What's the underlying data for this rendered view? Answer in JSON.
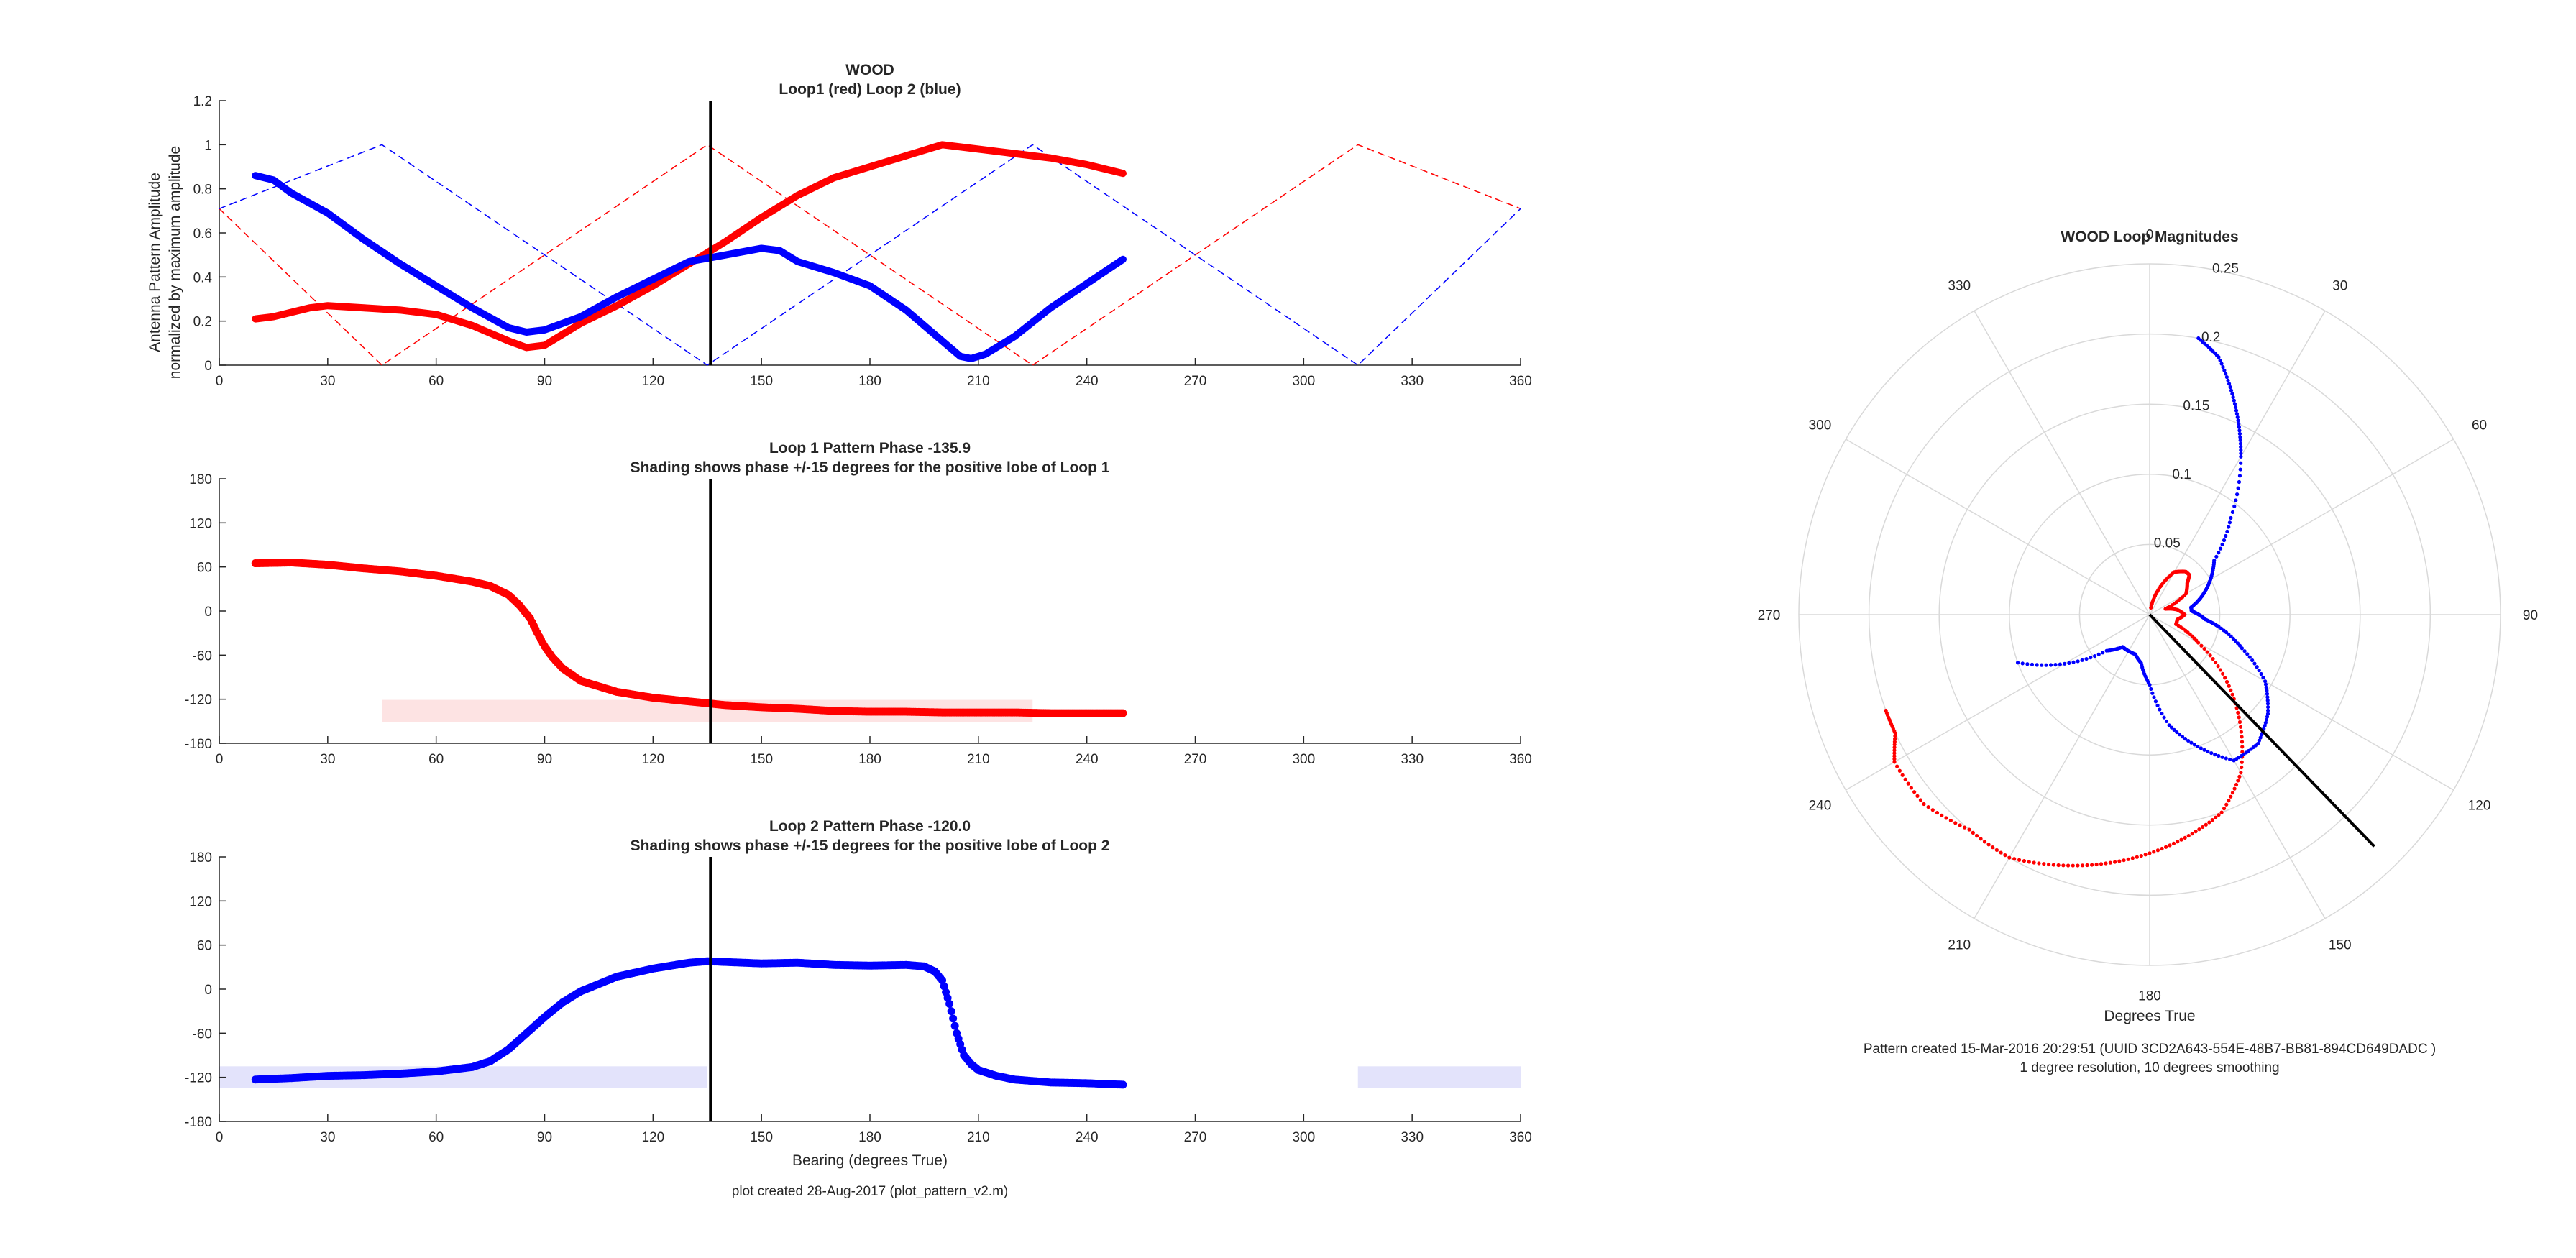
{
  "chart_data": [
    {
      "type": "line",
      "title": "WOOD",
      "subtitle": "Loop1 (red) Loop 2 (blue)",
      "xlabel": "",
      "ylabel": "Antenna Pattern Amplitude",
      "ylabel2": "normalized by maximum amplitude",
      "xlim": [
        0,
        360
      ],
      "ylim": [
        0,
        1.2
      ],
      "x_ticks": [
        "0",
        "30",
        "60",
        "90",
        "120",
        "150",
        "180",
        "210",
        "240",
        "270",
        "300",
        "330",
        "360"
      ],
      "y_ticks": [
        "0",
        "0.2",
        "0.4",
        "0.6",
        "0.8",
        "1",
        "1.2"
      ],
      "bearing_marker": 135.9,
      "colors": {
        "loop1": "#ff0000",
        "loop2": "#0000ff",
        "marker": "#000000"
      },
      "series": [
        {
          "x": [
            10,
            15,
            20,
            25,
            30,
            40,
            50,
            60,
            70,
            80,
            85,
            90,
            95,
            100,
            110,
            120,
            130,
            140,
            150,
            160,
            170,
            180,
            190,
            200,
            210,
            220,
            230,
            240,
            250
          ],
          "values": [
            0.21,
            0.22,
            0.24,
            0.26,
            0.27,
            0.26,
            0.25,
            0.23,
            0.18,
            0.11,
            0.08,
            0.09,
            0.14,
            0.19,
            0.27,
            0.36,
            0.46,
            0.56,
            0.67,
            0.77,
            0.85,
            0.9,
            0.95,
            1.0,
            0.98,
            0.96,
            0.94,
            0.91,
            0.87
          ]
        },
        {
          "x": [
            10,
            15,
            20,
            30,
            40,
            50,
            60,
            70,
            80,
            85,
            90,
            100,
            110,
            120,
            130,
            140,
            150,
            155,
            160,
            170,
            180,
            190,
            200,
            205,
            208,
            212,
            220,
            230,
            240,
            250
          ],
          "values": [
            0.86,
            0.84,
            0.78,
            0.69,
            0.57,
            0.46,
            0.36,
            0.26,
            0.17,
            0.15,
            0.16,
            0.22,
            0.31,
            0.39,
            0.47,
            0.5,
            0.53,
            0.52,
            0.47,
            0.42,
            0.36,
            0.25,
            0.11,
            0.04,
            0.03,
            0.05,
            0.13,
            0.26,
            0.37,
            0.48
          ]
        },
        {
          "x": [
            0,
            45,
            135,
            225,
            315,
            360
          ],
          "values": [
            0.71,
            0,
            1,
            0,
            1,
            0.71
          ]
        },
        {
          "x": [
            0,
            45,
            135,
            225,
            315,
            360
          ],
          "values": [
            0.71,
            1,
            0,
            1,
            0,
            0.71
          ]
        }
      ]
    },
    {
      "type": "scatter",
      "title": "Loop 1 Pattern Phase -135.9",
      "subtitle": "Shading shows phase +/-15 degrees for the positive lobe of Loop 1",
      "xlabel": "",
      "ylabel": "",
      "xlim": [
        0,
        360
      ],
      "ylim": [
        -180,
        180
      ],
      "x_ticks": [
        "0",
        "30",
        "60",
        "90",
        "120",
        "150",
        "180",
        "210",
        "240",
        "270",
        "300",
        "330",
        "360"
      ],
      "y_ticks": [
        "-180",
        "-120",
        "-60",
        "0",
        "60",
        "120",
        "180"
      ],
      "bearing_marker": 135.9,
      "shading": [
        {
          "x": [
            45,
            225
          ],
          "y": [
            -150.9,
            -120.9
          ]
        }
      ],
      "shade_color": "#fde3e3",
      "color": "#ff0000",
      "x": [
        10,
        20,
        30,
        40,
        50,
        60,
        70,
        75,
        80,
        83,
        86,
        88,
        90,
        92,
        95,
        100,
        110,
        120,
        130,
        140,
        150,
        160,
        170,
        180,
        190,
        200,
        210,
        220,
        230,
        240,
        250
      ],
      "y": [
        65,
        66,
        63,
        58,
        54,
        48,
        40,
        34,
        22,
        8,
        -10,
        -30,
        -48,
        -62,
        -78,
        -95,
        -110,
        -118,
        -123,
        -128,
        -131,
        -133,
        -136,
        -137,
        -137,
        -138,
        -138,
        -138,
        -139,
        -139,
        -139
      ]
    },
    {
      "type": "scatter",
      "title": "Loop 2 Pattern Phase -120.0",
      "subtitle": "Shading shows phase +/-15 degrees for the positive lobe of Loop 2",
      "xlabel": "Bearing (degrees True)",
      "ylabel": "",
      "xlim": [
        0,
        360
      ],
      "ylim": [
        -180,
        180
      ],
      "x_ticks": [
        "0",
        "30",
        "60",
        "90",
        "120",
        "150",
        "180",
        "210",
        "240",
        "270",
        "300",
        "330",
        "360"
      ],
      "y_ticks": [
        "-180",
        "-120",
        "-60",
        "0",
        "60",
        "120",
        "180"
      ],
      "bearing_marker": 135.9,
      "shading": [
        {
          "x": [
            0,
            135
          ],
          "y": [
            -135,
            -105
          ]
        },
        {
          "x": [
            315,
            360
          ],
          "y": [
            -135,
            -105
          ]
        }
      ],
      "shade_color": "#e3e3fb",
      "color": "#0000ff",
      "x": [
        10,
        20,
        30,
        40,
        50,
        60,
        70,
        75,
        80,
        85,
        90,
        95,
        100,
        110,
        120,
        130,
        135,
        140,
        150,
        160,
        170,
        180,
        190,
        195,
        198,
        200,
        202,
        204,
        206,
        208,
        210,
        215,
        220,
        230,
        240,
        250
      ],
      "y": [
        -123,
        -121,
        -118,
        -117,
        -115,
        -112,
        -106,
        -98,
        -82,
        -60,
        -38,
        -18,
        -3,
        17,
        28,
        36,
        38,
        37,
        35,
        36,
        33,
        32,
        33,
        31,
        24,
        12,
        -20,
        -60,
        -90,
        -102,
        -110,
        -118,
        -123,
        -127,
        -128,
        -130
      ]
    },
    {
      "type": "polar",
      "title": "WOOD Loop Magnitudes",
      "xlabel": "Degrees True",
      "theta_ticks": [
        "0",
        "30",
        "60",
        "90",
        "120",
        "150",
        "180",
        "210",
        "240",
        "270",
        "300",
        "330"
      ],
      "r_ticks": [
        "0.05",
        "0.1",
        "0.15",
        "0.2",
        "0.25"
      ],
      "rlim": [
        0,
        0.25
      ],
      "bearing_marker": 135.9,
      "series": [
        {
          "theta": [
            10,
            20,
            30,
            40,
            45,
            50,
            60,
            70,
            80,
            90,
            100,
            110,
            120,
            130,
            140,
            150,
            160,
            170,
            180,
            190,
            200,
            210,
            220,
            230,
            240,
            245,
            250
          ],
          "r": [
            0.005,
            0.02,
            0.035,
            0.04,
            0.04,
            0.035,
            0.03,
            0.012,
            0.02,
            0.025,
            0.02,
            0.02,
            0.04,
            0.07,
            0.1,
            0.13,
            0.15,
            0.16,
            0.17,
            0.18,
            0.19,
            0.2,
            0.2,
            0.21,
            0.21,
            0.2,
            0.2
          ]
        },
        {
          "theta": [
            10,
            15,
            20,
            25,
            30,
            40,
            50,
            60,
            70,
            80,
            85,
            90,
            95,
            100,
            110,
            120,
            130,
            140,
            150,
            160,
            170,
            180,
            190,
            200,
            210,
            220,
            230,
            240,
            250
          ],
          "r": [
            0.2,
            0.19,
            0.17,
            0.15,
            0.13,
            0.09,
            0.06,
            0.05,
            0.04,
            0.03,
            0.03,
            0.035,
            0.04,
            0.05,
            0.07,
            0.095,
            0.11,
            0.12,
            0.12,
            0.1,
            0.08,
            0.05,
            0.035,
            0.03,
            0.03,
            0.03,
            0.04,
            0.07,
            0.1
          ]
        }
      ]
    }
  ],
  "footer": {
    "left_note": "plot created 28-Aug-2017 (plot_pattern_v2.m)",
    "pattern_note": "Pattern created 15-Mar-2016 20:29:51 (UUID 3CD2A643-554E-48B7-BB81-894CD649DADC )",
    "resolution_note": "1 degree resolution, 10 degrees smoothing"
  }
}
